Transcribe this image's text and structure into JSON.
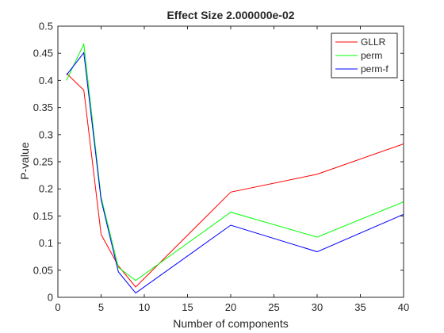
{
  "chart_data": {
    "type": "line",
    "title": "Effect Size 2.000000e-02",
    "xlabel": "Number of components",
    "ylabel": "P-value",
    "xlim": [
      0,
      40
    ],
    "ylim": [
      0,
      0.5
    ],
    "xticks": [
      0,
      5,
      10,
      15,
      20,
      25,
      30,
      35,
      40
    ],
    "yticks": [
      0,
      0.05,
      0.1,
      0.15,
      0.2,
      0.25,
      0.3,
      0.35,
      0.4,
      0.45,
      0.5
    ],
    "xtick_labels": [
      "0",
      "5",
      "10",
      "15",
      "20",
      "25",
      "30",
      "35",
      "40"
    ],
    "ytick_labels": [
      "0",
      "0.05",
      "0.1",
      "0.15",
      "0.2",
      "0.25",
      "0.3",
      "0.35",
      "0.4",
      "0.45",
      "0.5"
    ],
    "grid": false,
    "legend_position": "top-right",
    "x": [
      1,
      3,
      5,
      7,
      9,
      20,
      30,
      40
    ],
    "series": [
      {
        "name": "GLLR",
        "color": "#ff0000",
        "values": [
          0.413,
          0.382,
          0.116,
          0.058,
          0.019,
          0.194,
          0.227,
          0.283
        ]
      },
      {
        "name": "perm",
        "color": "#00ff00",
        "values": [
          0.4,
          0.467,
          0.185,
          0.055,
          0.031,
          0.157,
          0.111,
          0.176
        ]
      },
      {
        "name": "perm-f",
        "color": "#0000ff",
        "values": [
          0.41,
          0.451,
          0.18,
          0.047,
          0.008,
          0.133,
          0.084,
          0.153
        ]
      }
    ]
  }
}
